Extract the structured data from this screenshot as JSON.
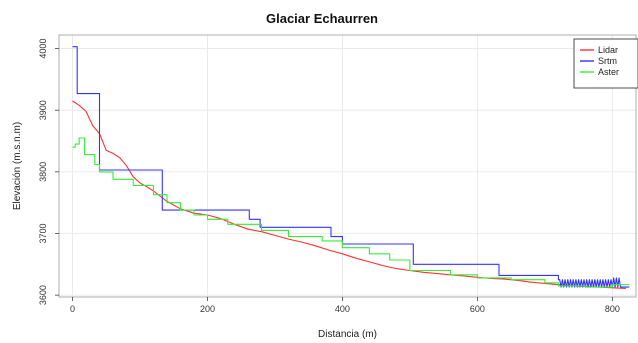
{
  "chart_data": {
    "type": "line",
    "title": "Glaciar Echaurren",
    "xlabel": "Distancia (m)",
    "ylabel": "Elevación (m.s.n.m)",
    "xlim": [
      -20,
      835
    ],
    "ylim": [
      3597,
      4022
    ],
    "xticks": [
      "0",
      "200",
      "400",
      "600",
      "800"
    ],
    "yticks": [
      "3600",
      "3700",
      "3800",
      "3900",
      "4000"
    ],
    "grid": true,
    "legend_position": "top-right",
    "series": [
      {
        "name": "Lidar",
        "color": "#ff3030",
        "x": [
          0,
          10,
          20,
          30,
          40,
          50,
          60,
          70,
          80,
          90,
          100,
          110,
          120,
          140,
          160,
          180,
          200,
          220,
          240,
          260,
          280,
          300,
          320,
          340,
          360,
          380,
          400,
          420,
          440,
          460,
          480,
          500,
          520,
          540,
          560,
          580,
          600,
          620,
          640,
          660,
          680,
          700,
          720,
          740,
          760,
          780,
          800,
          820
        ],
        "y": [
          3915,
          3908,
          3898,
          3875,
          3862,
          3835,
          3830,
          3823,
          3810,
          3792,
          3782,
          3776,
          3769,
          3752,
          3740,
          3733,
          3730,
          3724,
          3715,
          3707,
          3703,
          3697,
          3691,
          3686,
          3680,
          3673,
          3667,
          3660,
          3654,
          3648,
          3643,
          3640,
          3637,
          3635,
          3633,
          3631,
          3629,
          3627,
          3626,
          3624,
          3621,
          3619,
          3617,
          3615,
          3614,
          3613,
          3612,
          3611
        ]
      },
      {
        "name": "Srtm",
        "color": "#3333ff",
        "x": [
          0,
          7,
          7,
          40,
          40,
          133,
          133,
          262,
          262,
          278,
          278,
          383,
          383,
          400,
          400,
          505,
          505,
          632,
          632,
          720,
          720,
          722,
          724,
          726,
          728,
          730,
          732,
          734,
          736,
          738,
          740,
          742,
          744,
          746,
          748,
          750,
          752,
          754,
          756,
          758,
          760,
          762,
          764,
          766,
          768,
          770,
          772,
          774,
          776,
          778,
          780,
          782,
          784,
          786,
          788,
          790,
          792,
          794,
          796,
          798,
          800,
          802,
          804,
          806,
          808,
          810,
          812,
          814,
          816,
          818,
          820,
          825
        ],
        "y": [
          4003,
          4003,
          3927,
          3927,
          3803,
          3803,
          3738,
          3738,
          3723,
          3723,
          3710,
          3710,
          3695,
          3695,
          3683,
          3683,
          3650,
          3650,
          3632,
          3632,
          3625,
          3625,
          3613,
          3625,
          3613,
          3625,
          3613,
          3625,
          3613,
          3625,
          3613,
          3625,
          3613,
          3625,
          3613,
          3625,
          3613,
          3625,
          3613,
          3625,
          3613,
          3625,
          3613,
          3625,
          3613,
          3625,
          3613,
          3625,
          3613,
          3625,
          3613,
          3625,
          3613,
          3625,
          3613,
          3625,
          3613,
          3625,
          3613,
          3625,
          3613,
          3628,
          3613,
          3628,
          3613,
          3628,
          3613,
          3613,
          3613,
          3613,
          3613,
          3613
        ]
      },
      {
        "name": "Aster",
        "color": "#33ee33",
        "x": [
          0,
          4,
          4,
          10,
          10,
          18,
          18,
          33,
          33,
          40,
          40,
          60,
          60,
          90,
          90,
          120,
          120,
          140,
          140,
          160,
          160,
          180,
          180,
          200,
          200,
          230,
          230,
          280,
          280,
          320,
          320,
          370,
          370,
          400,
          400,
          440,
          440,
          470,
          470,
          500,
          500,
          560,
          560,
          600,
          600,
          650,
          650,
          700,
          700,
          720,
          720,
          760,
          760,
          800,
          800,
          825
        ],
        "y": [
          3840,
          3840,
          3845,
          3845,
          3855,
          3855,
          3828,
          3828,
          3812,
          3812,
          3800,
          3800,
          3788,
          3788,
          3778,
          3778,
          3763,
          3763,
          3750,
          3750,
          3738,
          3738,
          3730,
          3730,
          3723,
          3723,
          3715,
          3715,
          3705,
          3705,
          3695,
          3695,
          3688,
          3688,
          3677,
          3677,
          3667,
          3667,
          3657,
          3657,
          3640,
          3640,
          3633,
          3633,
          3628,
          3628,
          3625,
          3625,
          3620,
          3620,
          3615,
          3615,
          3613,
          3613,
          3617,
          3617
        ]
      }
    ]
  }
}
